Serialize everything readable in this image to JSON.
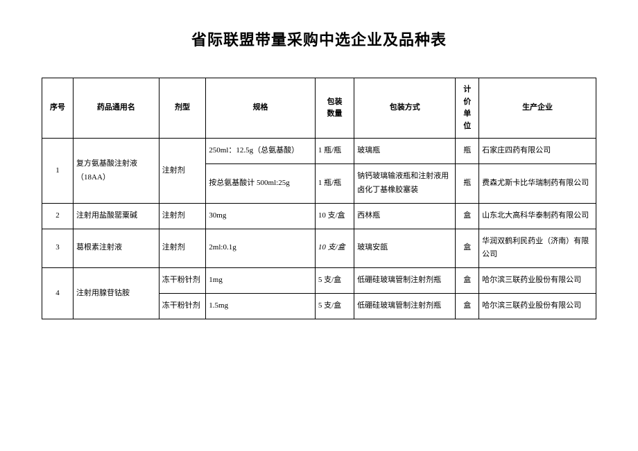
{
  "title": "省际联盟带量采购中选企业及品种表",
  "headers": {
    "seq": "序号",
    "name": "药品通用名",
    "form": "剂型",
    "spec": "规格",
    "qty": "包装数量",
    "pack": "包装方式",
    "unit": "计价单位",
    "mfr": "生产企业"
  },
  "unit_vertical": [
    "计",
    "价",
    "单",
    "位"
  ],
  "qty_lines": [
    "包装",
    "数量"
  ],
  "rows": [
    {
      "seq": "1",
      "name": "复方氨基酸注射液（18AA）",
      "form": "注射剂",
      "subs": [
        {
          "spec": "250ml：12.5g（总氨基酸）",
          "qty": "1 瓶/瓶",
          "pack": "玻璃瓶",
          "unit": "瓶",
          "mfr": "石家庄四药有限公司"
        },
        {
          "spec": "按总氨基酸计 500ml:25g",
          "qty": "1 瓶/瓶",
          "pack": "钠钙玻璃输液瓶和注射液用卤化丁基橡胶塞装",
          "unit": "瓶",
          "mfr": "费森尤斯卡比华瑞制药有限公司"
        }
      ]
    },
    {
      "seq": "2",
      "name": "注射用盐酸罂粟碱",
      "form": "注射剂",
      "subs": [
        {
          "spec": "30mg",
          "qty": "10 支/盒",
          "pack": "西林瓶",
          "unit": "盒",
          "mfr": "山东北大高科华泰制药有限公司"
        }
      ]
    },
    {
      "seq": "3",
      "name": "葛根素注射液",
      "form": "注射剂",
      "subs": [
        {
          "spec": "2ml:0.1g",
          "qty": "10 支/盒",
          "qty_italic": true,
          "pack": "玻璃安瓿",
          "unit": "盒",
          "mfr": "华润双鹤利民药业（济南）有限公司"
        }
      ]
    },
    {
      "seq": "4",
      "name": "注射用腺苷钴胺",
      "form": "冻干粉针剂",
      "form_per_row": true,
      "subs": [
        {
          "form": "冻干粉针剂",
          "spec": "1mg",
          "qty": "5 支/盒",
          "pack": "低硼硅玻璃管制注射剂瓶",
          "unit": "盒",
          "mfr": "哈尔滨三联药业股份有限公司"
        },
        {
          "form": "冻干粉针剂",
          "spec": "1.5mg",
          "qty": "5 支/盒",
          "pack": "低硼硅玻璃管制注射剂瓶",
          "unit": "盒",
          "mfr": "哈尔滨三联药业股份有限公司"
        }
      ]
    }
  ]
}
